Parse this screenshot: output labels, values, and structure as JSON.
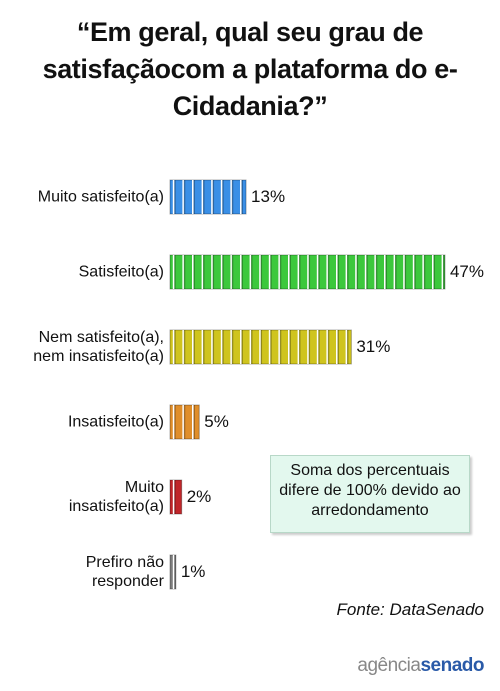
{
  "chart_data": {
    "type": "bar",
    "orientation": "horizontal",
    "title": "“Em geral, qual seu grau de satisfaçãocom a plataforma do e-Cidadania?”",
    "categories": [
      "Muito satisfeito(a)",
      "Satisfeito(a)",
      "Nem satisfeito(a),\nnem insatisfeito(a)",
      "Insatisfeito(a)",
      "Muito\ninsatisfeito(a)",
      "Prefiro não\nresponder"
    ],
    "values": [
      13,
      47,
      31,
      5,
      2,
      1
    ],
    "value_labels": [
      "13%",
      "47%",
      "31%",
      "5%",
      "2%",
      "1%"
    ],
    "colors": [
      "#3a8fe6",
      "#3cc83c",
      "#cfc41e",
      "#e08e2a",
      "#c0262a",
      "#7d7d7d"
    ],
    "note": "Soma dos percentuais difere de 100% devido ao arredondamento",
    "source": "Fonte: DataSenado",
    "logo": [
      "agência",
      "senado"
    ]
  }
}
